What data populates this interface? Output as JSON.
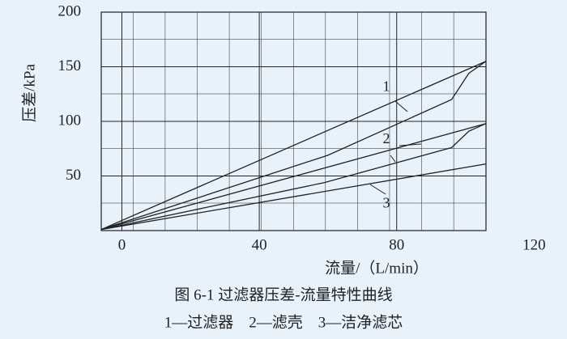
{
  "chart_data": {
    "type": "line",
    "y_label": "压差/kPa",
    "x_label": "流量/（L/min）",
    "caption": "图 6-1 过滤器压差-流量特性曲线",
    "legend_note": "1—过滤器　2—滤壳　3—洁净滤芯",
    "xlim": [
      -6,
      106
    ],
    "xticks": [
      0,
      40,
      80,
      120
    ],
    "ylim": [
      0,
      200
    ],
    "yticks": [
      50,
      100,
      150,
      200
    ],
    "grid": true,
    "series": [
      {
        "color": "#222222",
        "x": [
          -6,
          106
        ],
        "values": [
          1,
          155
        ]
      },
      {
        "color": "#222222",
        "x": [
          -6,
          60,
          96,
          101,
          106
        ],
        "values": [
          1,
          69,
          120,
          144,
          155
        ]
      },
      {
        "color": "#222222",
        "x": [
          -6,
          106
        ],
        "values": [
          1,
          98
        ]
      },
      {
        "color": "#222222",
        "x": [
          -6,
          59,
          96,
          101,
          106
        ],
        "values": [
          1,
          44,
          76,
          91,
          98
        ]
      },
      {
        "color": "#222222",
        "x": [
          -6,
          106
        ],
        "values": [
          1,
          61
        ]
      }
    ],
    "annotations": [
      {
        "text": "1",
        "x": 77,
        "y": 131
      },
      {
        "text": "2",
        "x": 77,
        "y": 83
      },
      {
        "text": "3",
        "x": 77,
        "y": 24
      }
    ]
  }
}
